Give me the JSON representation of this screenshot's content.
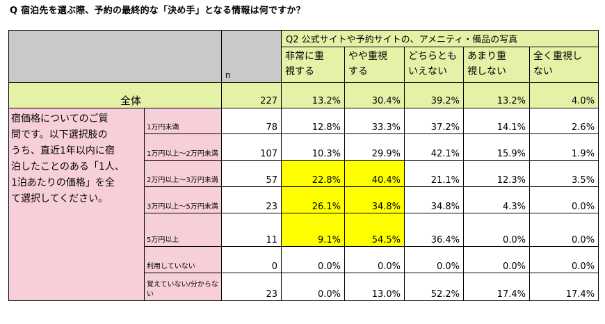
{
  "title": "Q 宿泊先を選ぶ際、予約の最終的な「決め手」となる情報は何ですか？",
  "header": {
    "n_label": "n",
    "question_label": "Q2 公式サイトや予約サイトの、アメニティ・備品の写真",
    "columns": [
      {
        "line1": "非常に重",
        "line2": "視する"
      },
      {
        "line1": "やや重視",
        "line2": "する"
      },
      {
        "line1": "どちらとも",
        "line2": "いえない"
      },
      {
        "line1": "あまり重",
        "line2": "視しない"
      },
      {
        "line1": "全く重視し",
        "line2": "ない"
      }
    ]
  },
  "total": {
    "label": "全体",
    "n": "227",
    "values": [
      "13.2%",
      "30.4%",
      "39.2%",
      "13.2%",
      "4.0%"
    ]
  },
  "segment_question": {
    "lines": [
      "宿価格についてのご質",
      "問です。以下選択肢の",
      "うち、直近1年以内に宿",
      "泊したことのある「1人、",
      "1泊あたりの価格」を全",
      "て選択してください。"
    ]
  },
  "rows": [
    {
      "label": "1万円未満",
      "n": "78",
      "values": [
        "12.8%",
        "33.3%",
        "37.2%",
        "14.1%",
        "2.6%"
      ],
      "highlight": [
        false,
        false,
        false,
        false,
        false
      ]
    },
    {
      "label": "1万円以上～2万円未満",
      "n": "107",
      "values": [
        "10.3%",
        "29.9%",
        "42.1%",
        "15.9%",
        "1.9%"
      ],
      "highlight": [
        false,
        false,
        false,
        false,
        false
      ]
    },
    {
      "label": "2万円以上～3万円未満",
      "n": "57",
      "values": [
        "22.8%",
        "40.4%",
        "21.1%",
        "12.3%",
        "3.5%"
      ],
      "highlight": [
        true,
        true,
        false,
        false,
        false
      ]
    },
    {
      "label": "3万円以上～5万円未満",
      "n": "23",
      "values": [
        "26.1%",
        "34.8%",
        "34.8%",
        "4.3%",
        "0.0%"
      ],
      "highlight": [
        true,
        true,
        false,
        false,
        false
      ]
    },
    {
      "label": "5万円以上",
      "n": "11",
      "values": [
        "9.1%",
        "54.5%",
        "36.4%",
        "0.0%",
        "0.0%"
      ],
      "highlight": [
        true,
        true,
        false,
        false,
        false
      ]
    },
    {
      "label": "利用していない",
      "n": "0",
      "values": [
        "0.0%",
        "0.0%",
        "0.0%",
        "0.0%",
        "0.0%"
      ],
      "highlight": [
        false,
        false,
        false,
        false,
        false
      ]
    },
    {
      "label": "覚えていない/分からない",
      "n": "23",
      "values": [
        "0.0%",
        "13.0%",
        "52.2%",
        "17.4%",
        "17.4%"
      ],
      "highlight": [
        false,
        false,
        false,
        false,
        false
      ]
    }
  ],
  "colors": {
    "header_gray": "#c9c9c9",
    "total_green": "#e4f2a7",
    "question_pink": "#f7cfd8",
    "highlight_yellow": "#ffff00"
  }
}
